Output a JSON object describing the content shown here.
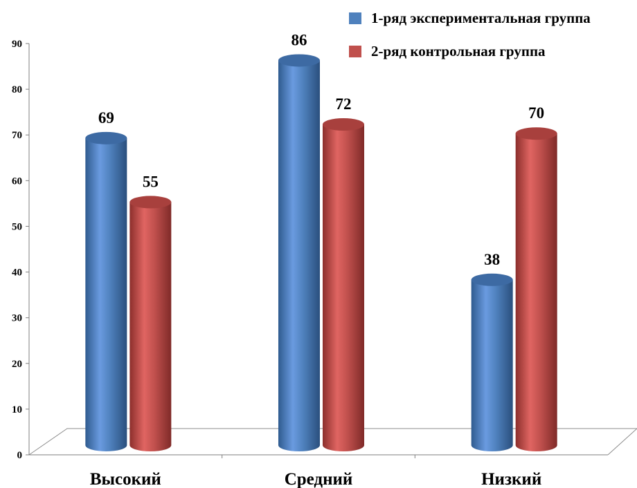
{
  "chart_data": {
    "type": "bar",
    "style": "3d-cylinder",
    "categories": [
      "Высокий",
      "Средний",
      "Низкий"
    ],
    "series": [
      {
        "name": "1-ряд экспериментальная группа",
        "color": "#4f81bd",
        "values": [
          69,
          86,
          38
        ]
      },
      {
        "name": "2-ряд контрольная группа",
        "color": "#c0504d",
        "values": [
          55,
          72,
          70
        ]
      }
    ],
    "ylim": [
      0,
      90
    ],
    "yticks": [
      "0",
      "10",
      "20",
      "30",
      "40",
      "50",
      "60",
      "70",
      "80",
      "90"
    ],
    "value_labels": [
      [
        "69",
        "86",
        "38"
      ],
      [
        "55",
        "72",
        "70"
      ]
    ],
    "legend_position": "top-right",
    "grid": false
  }
}
